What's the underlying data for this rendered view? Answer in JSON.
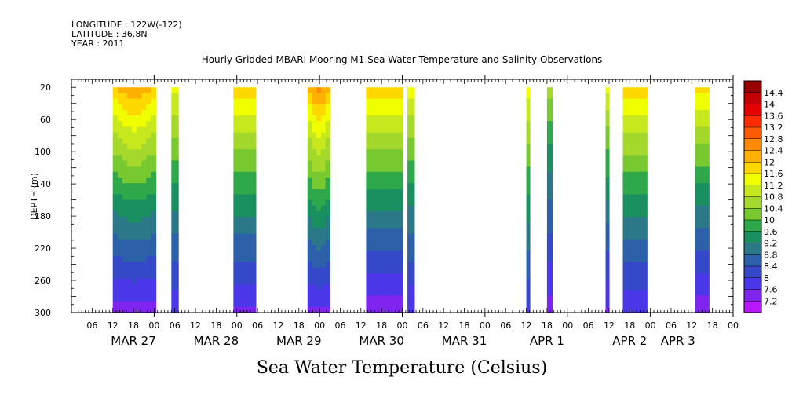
{
  "header": {
    "lines": [
      "LONGITUDE : 122W(-122)",
      "LATITUDE : 36.8N",
      "YEAR : 2011"
    ]
  },
  "chart_data": {
    "type": "heatmap",
    "title": "Hourly Gridded MBARI Mooring M1 Sea Water Temperature and Salinity Observations",
    "xlabel": "Sea Water Temperature (Celsius)",
    "ylabel": "DEPTH (m)",
    "x_unit": "hours since MAR 27 00:00",
    "xlim": [
      -24,
      168
    ],
    "ylim": [
      300,
      10
    ],
    "y_ticks": [
      20,
      60,
      100,
      140,
      180,
      220,
      260,
      300
    ],
    "x_ticks": [
      {
        "h": -18,
        "label": "06"
      },
      {
        "h": -12,
        "label": "12"
      },
      {
        "h": -6,
        "label": "18"
      },
      {
        "h": 0,
        "label": "00"
      },
      {
        "h": 6,
        "label": "06"
      },
      {
        "h": 12,
        "label": "12"
      },
      {
        "h": 18,
        "label": "18"
      },
      {
        "h": 24,
        "label": "00"
      },
      {
        "h": 30,
        "label": "06"
      },
      {
        "h": 36,
        "label": "12"
      },
      {
        "h": 42,
        "label": "18"
      },
      {
        "h": 48,
        "label": "00"
      },
      {
        "h": 54,
        "label": "06"
      },
      {
        "h": 60,
        "label": "12"
      },
      {
        "h": 66,
        "label": "18"
      },
      {
        "h": 72,
        "label": "00"
      },
      {
        "h": 78,
        "label": "06"
      },
      {
        "h": 84,
        "label": "12"
      },
      {
        "h": 90,
        "label": "18"
      },
      {
        "h": 96,
        "label": "00"
      },
      {
        "h": 102,
        "label": "06"
      },
      {
        "h": 108,
        "label": "12"
      },
      {
        "h": 114,
        "label": "18"
      },
      {
        "h": 120,
        "label": "00"
      },
      {
        "h": 126,
        "label": "06"
      },
      {
        "h": 132,
        "label": "12"
      },
      {
        "h": 138,
        "label": "18"
      },
      {
        "h": 144,
        "label": "00"
      },
      {
        "h": 150,
        "label": "06"
      },
      {
        "h": 156,
        "label": "12"
      },
      {
        "h": 162,
        "label": "18"
      },
      {
        "h": 168,
        "label": "00"
      }
    ],
    "month_labels": [
      {
        "h": -6,
        "label": "MAR 27"
      },
      {
        "h": 18,
        "label": "MAR 28"
      },
      {
        "h": 42,
        "label": "MAR 29"
      },
      {
        "h": 66,
        "label": "MAR 30"
      },
      {
        "h": 90,
        "label": "MAR 31"
      },
      {
        "h": 114,
        "label": "APR  1"
      },
      {
        "h": 138,
        "label": "APR  2"
      },
      {
        "h": 152,
        "label": "APR  3"
      }
    ],
    "colorbar": {
      "levels": [
        "14.4",
        "14",
        "13.6",
        "13.2",
        "12.8",
        "12.4",
        "12",
        "11.6",
        "11.2",
        "10.8",
        "10.4",
        "10",
        "9.6",
        "9.2",
        "8.8",
        "8.4",
        "8",
        "7.6",
        "7.2"
      ],
      "colors": [
        "#990000",
        "#c40000",
        "#e60000",
        "#ff2a00",
        "#ff5a00",
        "#ff8a00",
        "#ffb000",
        "#ffd800",
        "#f0ff00",
        "#c8e81e",
        "#a4d82a",
        "#78c830",
        "#2ea84a",
        "#1a9060",
        "#2a7888",
        "#2c60a8",
        "#3448c8",
        "#4a38e8",
        "#8024f0",
        "#b818ff"
      ]
    },
    "segments": [
      {
        "x0": -12,
        "x1": 0.5,
        "top": 11.9,
        "bottom": 7.4,
        "pattern": "y",
        "dome": 0.5
      },
      {
        "x0": 5,
        "x1": 7,
        "top": 11.4,
        "bottom": 7.7,
        "pattern": "y"
      },
      {
        "x0": 23,
        "x1": 29.5,
        "top": 11.9,
        "bottom": 7.5,
        "pattern": "y"
      },
      {
        "x0": 44.5,
        "x1": 51,
        "top": 11.9,
        "bottom": 7.5,
        "pattern": "y",
        "dome": 0.7
      },
      {
        "x0": 61.5,
        "x1": 72,
        "top": 12.0,
        "bottom": 7.3,
        "pattern": "y"
      },
      {
        "x0": 73.5,
        "x1": 75.5,
        "top": 11.5,
        "bottom": 7.6,
        "pattern": "y"
      },
      {
        "x0": 108,
        "x1": 109,
        "top": 11.5,
        "bottom": 7.9,
        "pattern": "y"
      },
      {
        "x0": 114,
        "x1": 115.5,
        "top": 10.6,
        "bottom": 7.4,
        "pattern": "y"
      },
      {
        "x0": 131,
        "x1": 132,
        "top": 11.3,
        "bottom": 7.5,
        "pattern": "y"
      },
      {
        "x0": 136,
        "x1": 143,
        "top": 11.9,
        "bottom": 7.6,
        "pattern": "y"
      },
      {
        "x0": 157,
        "x1": 161,
        "top": 11.8,
        "bottom": 7.3,
        "pattern": "y"
      }
    ]
  }
}
